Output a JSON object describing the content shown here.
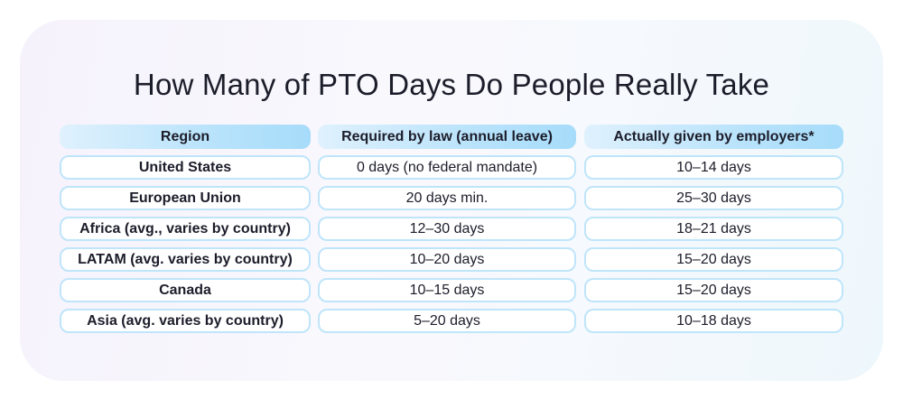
{
  "title": "How Many of PTO Days Do People Really Take",
  "table": {
    "headers": [
      "Region",
      "Required by law (annual leave)",
      "Actually given by employers*"
    ],
    "rows": [
      [
        "United States",
        "0 days (no federal mandate)",
        "10–14 days"
      ],
      [
        "European Union",
        "20 days min.",
        "25–30 days"
      ],
      [
        "Africa (avg., varies by country)",
        "12–30 days",
        "18–21 days"
      ],
      [
        "LATAM (avg. varies by country)",
        "10–20 days",
        "15–20 days"
      ],
      [
        "Canada",
        "10–15 days",
        "15–20 days"
      ],
      [
        "Asia (avg. varies by country)",
        "5–20 days",
        "10–18 days"
      ]
    ]
  },
  "colors": {
    "header_fill": "#a6dcfa",
    "cell_border": "#bfe5fa",
    "text": "#1c1d2a"
  }
}
